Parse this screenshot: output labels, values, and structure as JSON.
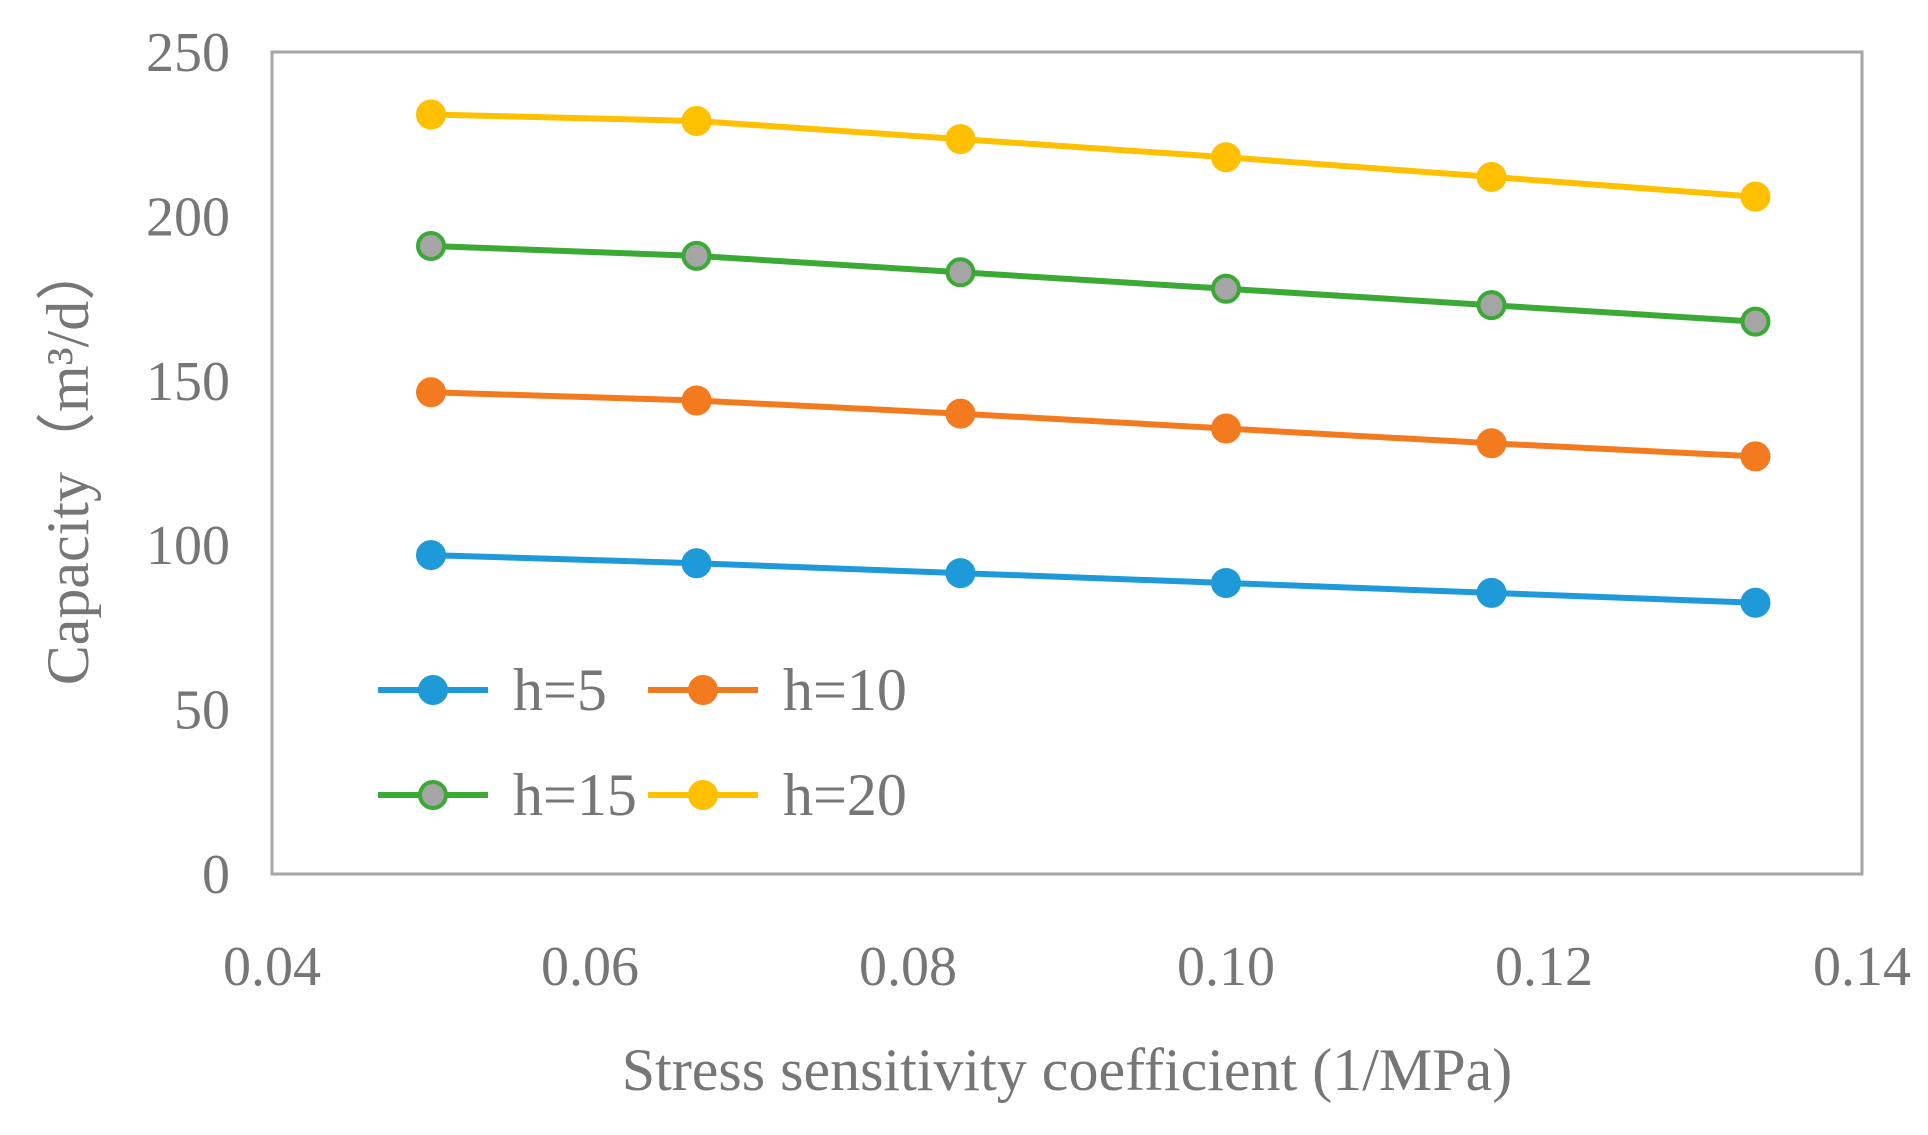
{
  "chart_data": {
    "type": "line",
    "title": "",
    "xlabel": "Stress sensitivity coefficient (1/MPa)",
    "ylabel": "Capacity（m³/d）",
    "xlim": [
      0.04,
      0.14
    ],
    "ylim": [
      0,
      250
    ],
    "x_ticks": [
      "0.04",
      "0.06",
      "0.08",
      "0.10",
      "0.12",
      "0.14"
    ],
    "y_ticks": [
      "0",
      "50",
      "100",
      "150",
      "200",
      "250"
    ],
    "grid": false,
    "legend_position": "bottom-left",
    "x": [
      0.05,
      0.0667,
      0.0833,
      0.1,
      0.1167,
      0.1333
    ],
    "series": [
      {
        "name": "h=5",
        "color": "#1E9AD8",
        "marker_fill": "#1E9AD8",
        "values": [
          97,
          94.5,
          91.5,
          88.5,
          85.5,
          82.5
        ]
      },
      {
        "name": "h=10",
        "color": "#F47A1F",
        "marker_fill": "#F47A1F",
        "values": [
          146.5,
          144,
          140,
          135.5,
          131,
          127
        ]
      },
      {
        "name": "h=15",
        "color": "#3AA935",
        "marker_fill": "#A5A5A5",
        "values": [
          191,
          188,
          183,
          178,
          173,
          168
        ]
      },
      {
        "name": "h=20",
        "color": "#FFC000",
        "marker_fill": "#FFC000",
        "values": [
          231,
          229,
          223.5,
          218,
          212,
          206
        ]
      }
    ]
  }
}
